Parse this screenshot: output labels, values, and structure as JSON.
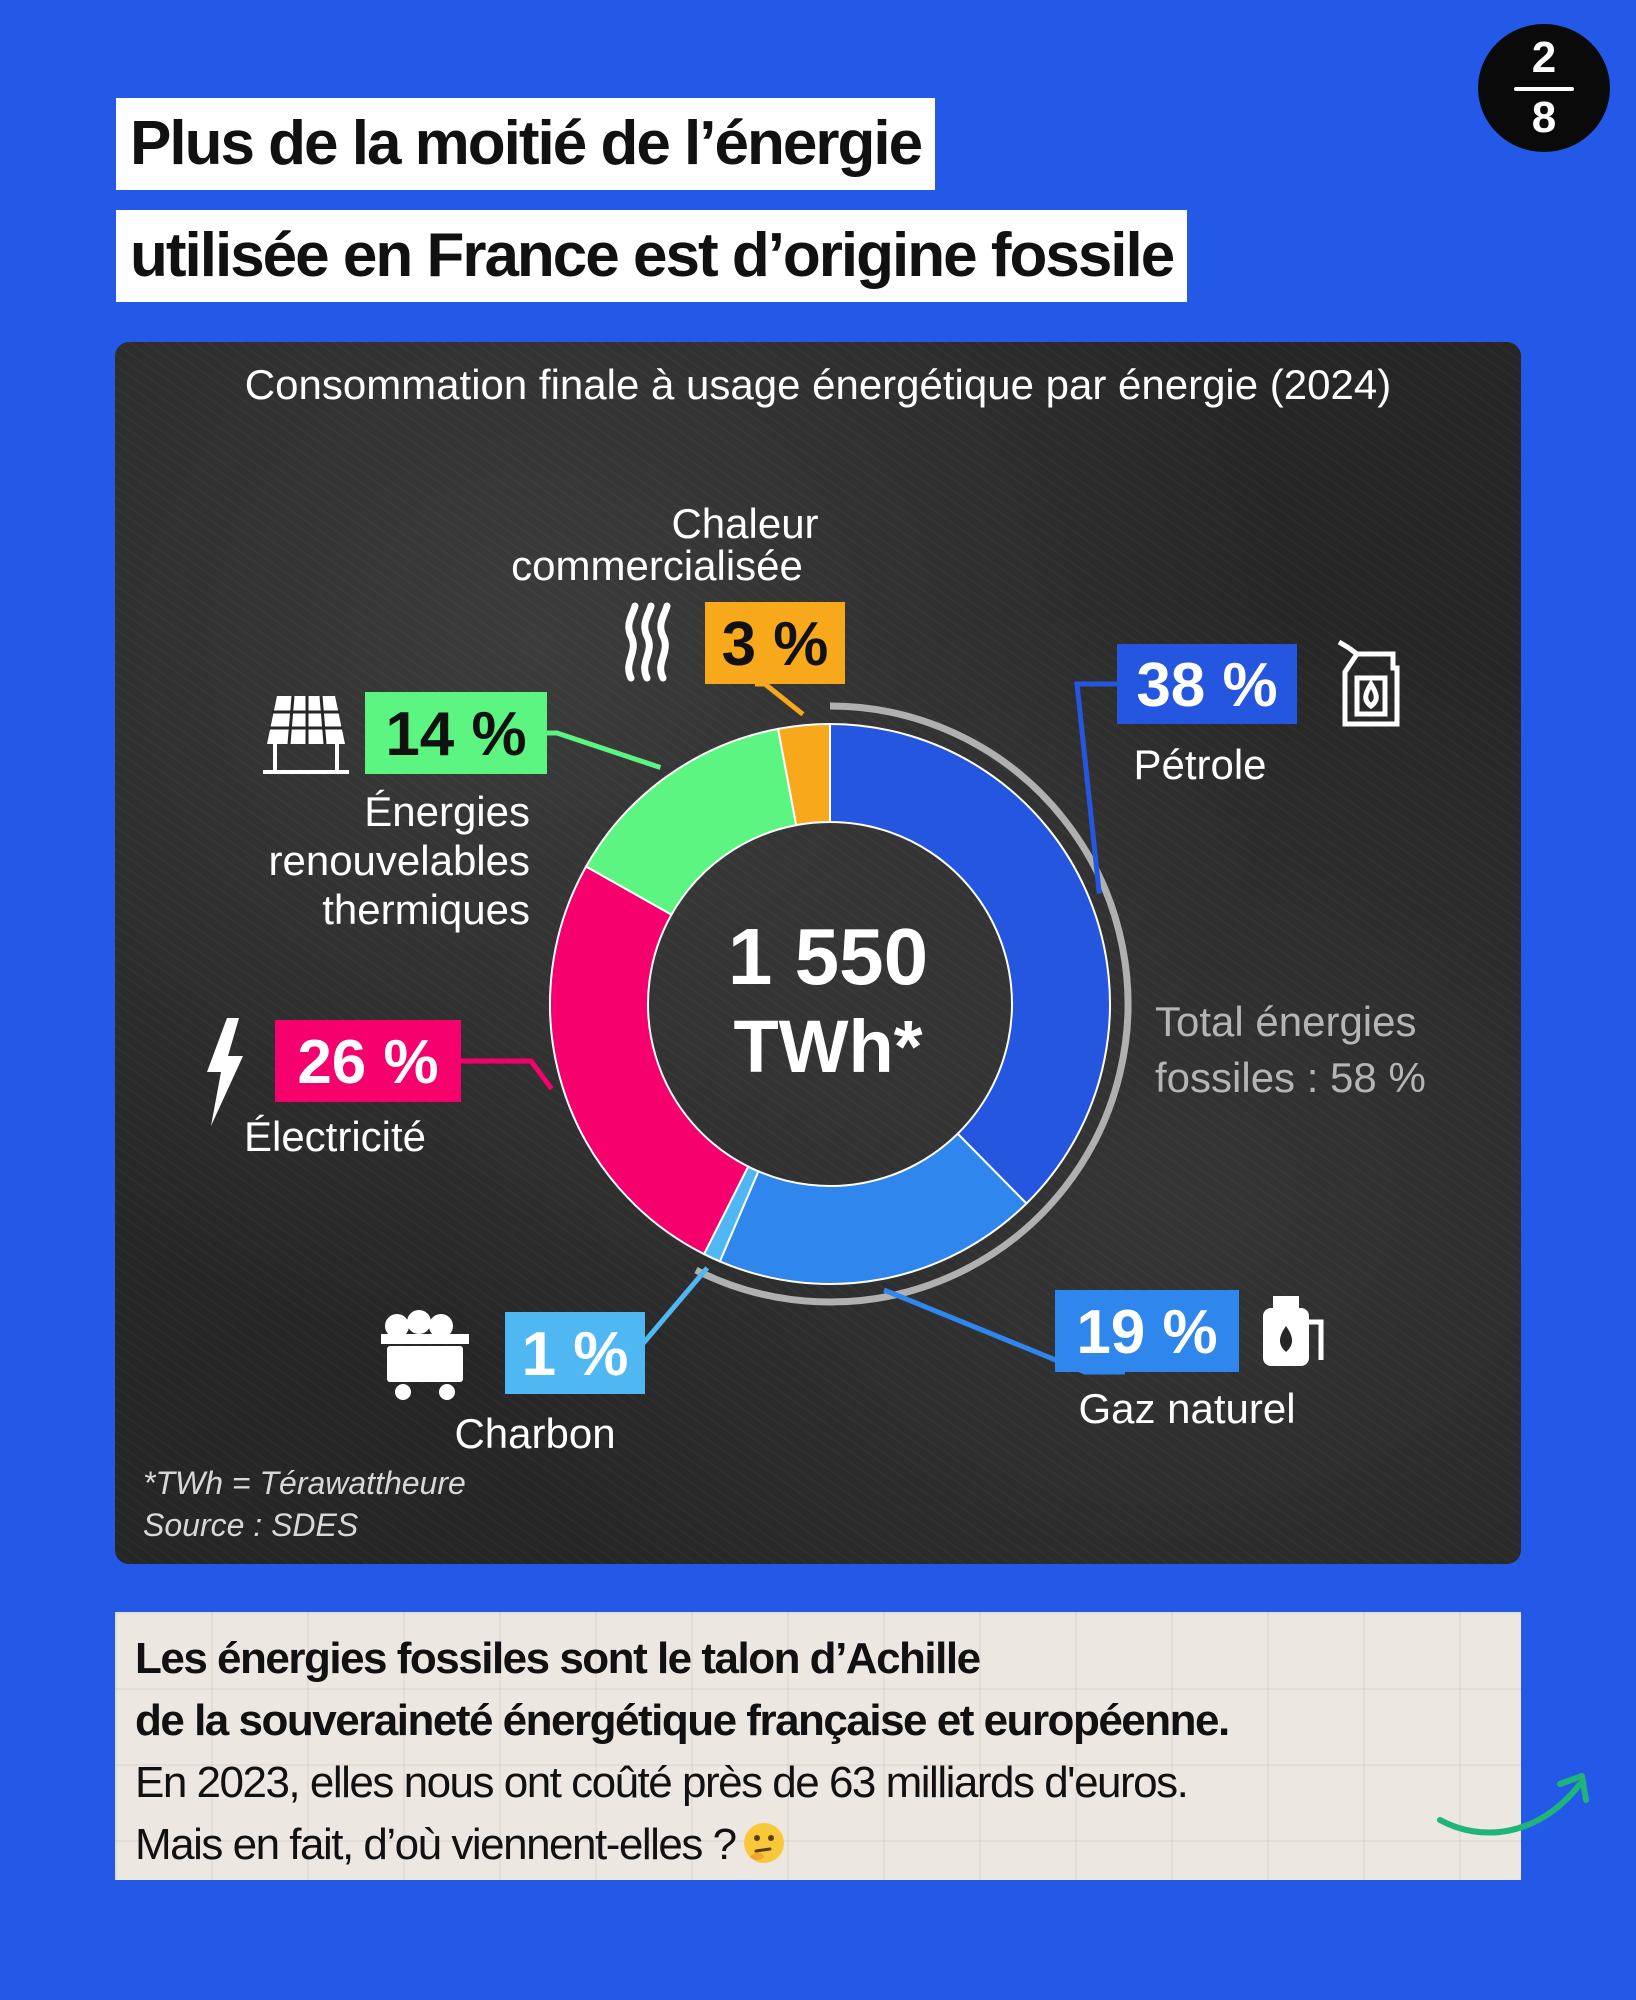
{
  "header": {
    "title_line1": "Plus de la moitié de l’énergie",
    "title_line2": "utilisée en France est d’origine fossile"
  },
  "slide_badge": {
    "current": "2",
    "total": "8"
  },
  "chart_data": {
    "type": "pie",
    "title": "Consommation finale à usage énergétique par énergie (2024)",
    "center_value": "1 550",
    "center_unit": "TWh*",
    "slices": [
      {
        "name": "Pétrole",
        "label": "38 %",
        "value": 38,
        "color": "#2456e0",
        "icon": "fuel-can-icon"
      },
      {
        "name": "Gaz naturel",
        "label": "19 %",
        "value": 19,
        "color": "#2f86ec",
        "icon": "gas-tank-icon"
      },
      {
        "name": "Charbon",
        "label": "1 %",
        "value": 1,
        "color": "#4fb8f3",
        "icon": "coal-cart-icon"
      },
      {
        "name": "Électricité",
        "label": "26 %",
        "value": 26,
        "color": "#f6006d",
        "icon": "lightning-icon"
      },
      {
        "name": "Énergies renouvelables thermiques",
        "label": "14 %",
        "value": 14,
        "color": "#5cf582",
        "icon": "solar-panel-icon"
      },
      {
        "name": "Chaleur commercialisée",
        "label": "3 %",
        "value": 3,
        "color": "#f7a81b",
        "icon": "heat-icon"
      }
    ],
    "label_lines": {
      "petrole": [
        "Pétrole"
      ],
      "gaz": [
        "Gaz naturel"
      ],
      "charbon": [
        "Charbon"
      ],
      "electricite": [
        "Électricité"
      ],
      "renouvelables": [
        "Énergies",
        "renouvelables",
        "thermiques"
      ],
      "chaleur": [
        "Chaleur",
        "commercialisée"
      ]
    },
    "fossil_total": {
      "line1": "Total énergies",
      "line2": "fossiles : 58 %"
    },
    "footnote": "*TWh = Térawattheure",
    "source": "Source : SDES"
  },
  "note": {
    "line1": "Les énergies fossiles sont le talon d’Achille",
    "line2": "de la souveraineté énergétique française et européenne.",
    "line3": "En 2023, elles nous ont coûté près de 63 milliards d'euros.",
    "line4": "Mais en fait, d’où viennent-elles ?"
  },
  "colors": {
    "background": "#2458e6",
    "board": "#262626",
    "note_card": "#ece7e1",
    "arrow": "#1fb47a"
  }
}
